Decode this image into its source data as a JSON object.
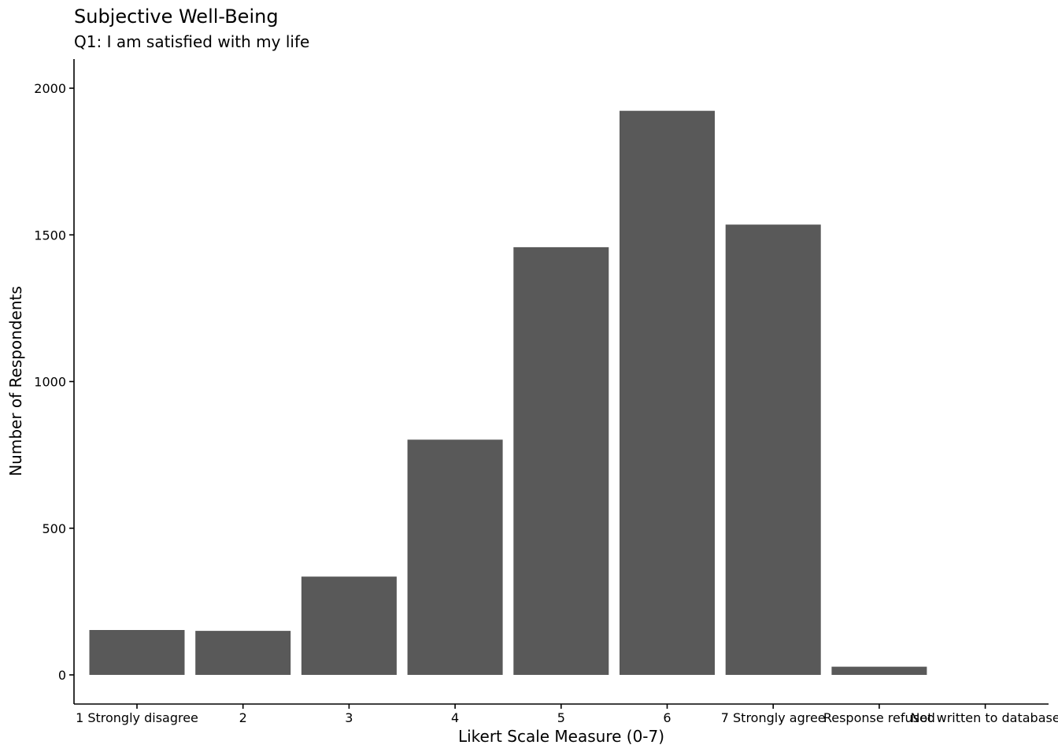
{
  "chart_data": {
    "type": "bar",
    "title": "Subjective Well-Being",
    "subtitle": "Q1: I am satisfied with my life",
    "xlabel": "Likert Scale Measure (0-7)",
    "ylabel": "Number of Respondents",
    "categories": [
      "1 Strongly disagree",
      "2",
      "3",
      "4",
      "5",
      "6",
      "7 Strongly agree",
      "Response refused",
      "Not written to database"
    ],
    "values": [
      153,
      150,
      335,
      802,
      1458,
      1923,
      1535,
      28,
      0
    ],
    "yticks": [
      0,
      500,
      1000,
      1500,
      2000
    ],
    "ylim": [
      -100,
      2100
    ],
    "grid": false,
    "bar_color": "#595959",
    "legend": "none"
  }
}
